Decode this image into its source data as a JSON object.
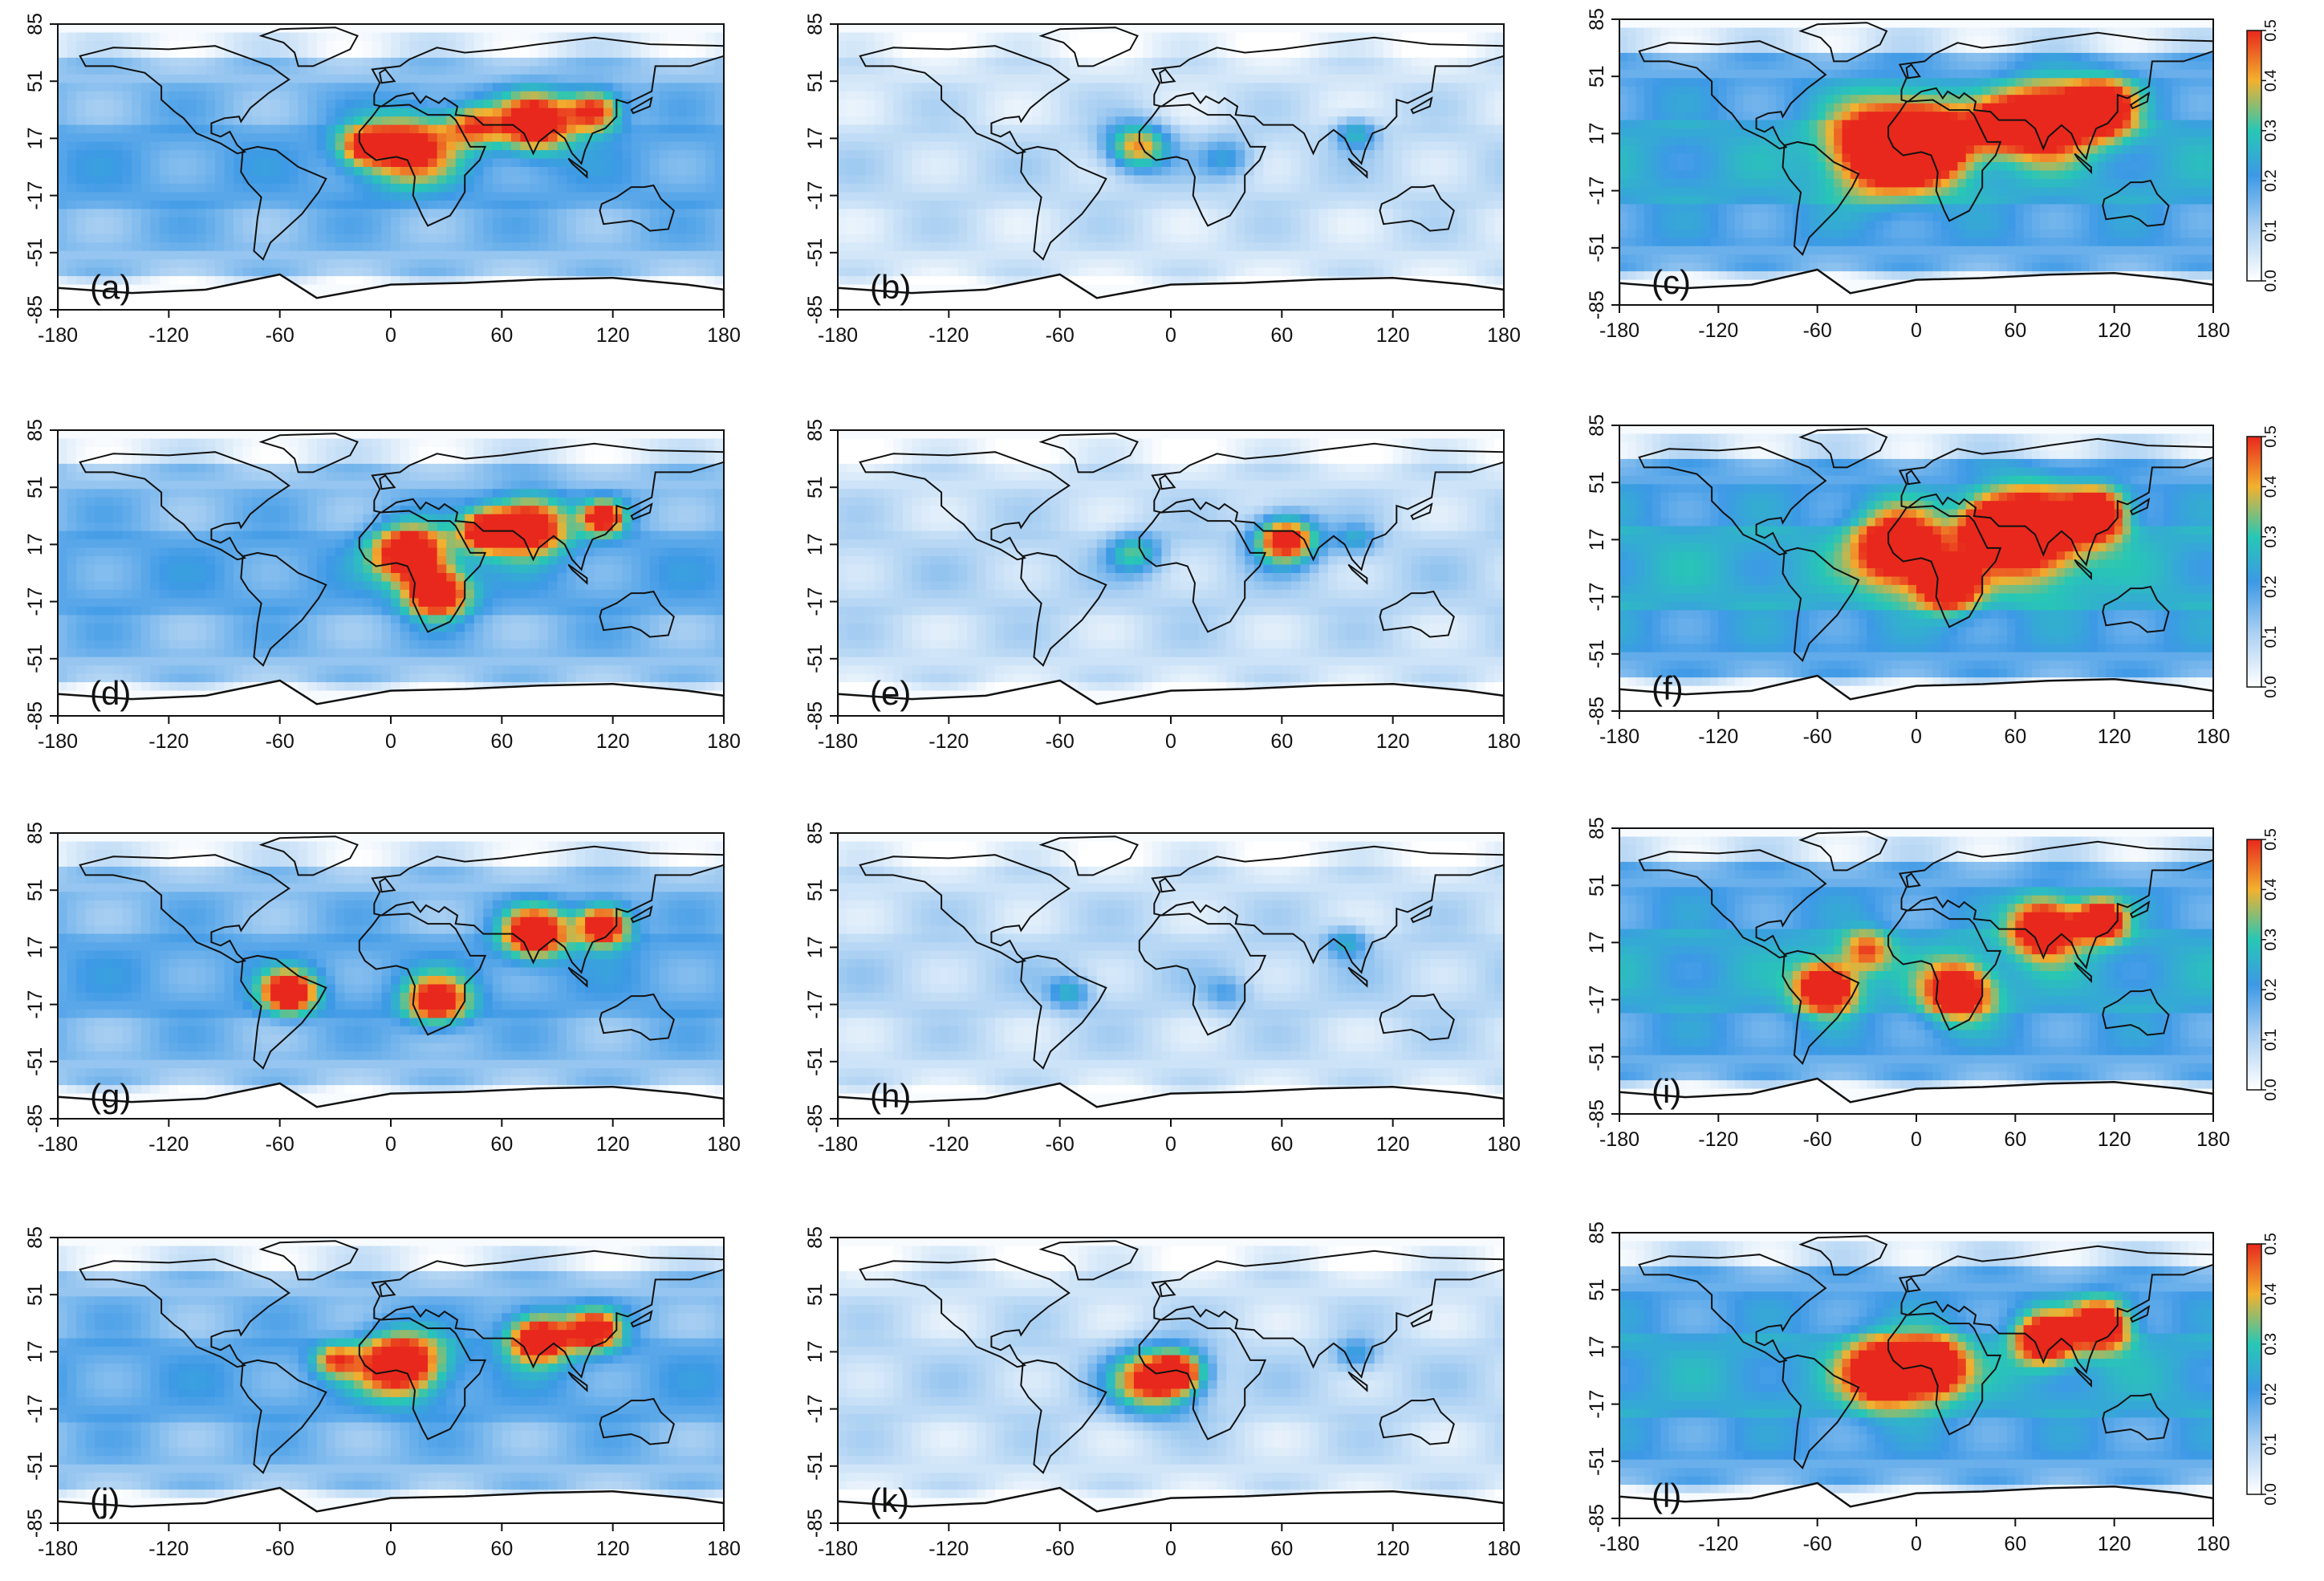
{
  "figure": {
    "panels": [
      {
        "label": "(a)",
        "colorbar": false
      },
      {
        "label": "(b)",
        "colorbar": false
      },
      {
        "label": "(c)",
        "colorbar": true
      },
      {
        "label": "(d)",
        "colorbar": false
      },
      {
        "label": "(e)",
        "colorbar": false
      },
      {
        "label": "(f)",
        "colorbar": true
      },
      {
        "label": "(g)",
        "colorbar": false
      },
      {
        "label": "(h)",
        "colorbar": false
      },
      {
        "label": "(i)",
        "colorbar": true
      },
      {
        "label": "(j)",
        "colorbar": false
      },
      {
        "label": "(k)",
        "colorbar": false
      },
      {
        "label": "(l)",
        "colorbar": true
      }
    ],
    "x_ticks": [
      "-180",
      "-120",
      "-60",
      "0",
      "60",
      "120",
      "180"
    ],
    "y_ticks": [
      "85",
      "51",
      "17",
      "-17",
      "-51",
      "-85"
    ],
    "colorbar_ticks": [
      "0.5",
      "0.4",
      "0.3",
      "0.2",
      "0.1",
      "0.0"
    ],
    "colorbar_range": [
      0,
      0.5
    ],
    "colors": {
      "low": "#ffffff",
      "light_blue": "#a9cff2",
      "blue": "#3d99e6",
      "cyan": "#27c7b5",
      "yellow": "#f2b12f",
      "high": "#e8281c"
    }
  }
}
